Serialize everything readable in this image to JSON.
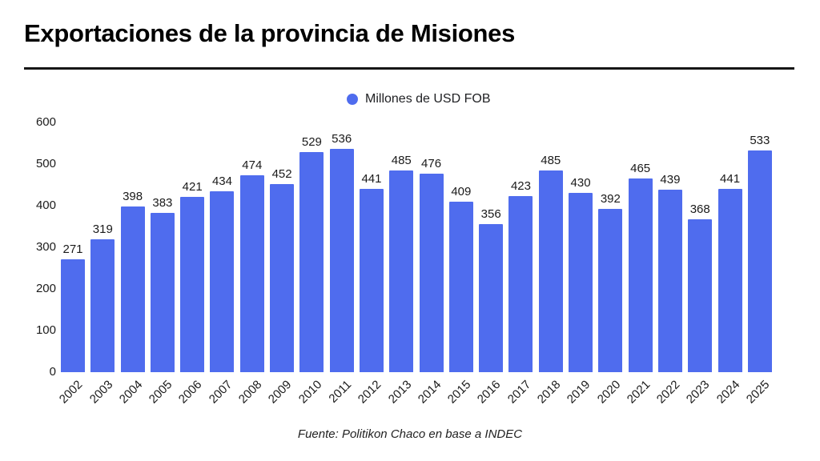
{
  "page": {
    "title": "Exportaciones de la provincia de Misiones",
    "source_note": "Fuente: Politikon Chaco en base a INDEC"
  },
  "legend": {
    "label": "Millones de USD FOB"
  },
  "colors": {
    "bar": "#4f6cee",
    "title": "#000000",
    "label": "#1a1a1a",
    "rule": "#161616"
  },
  "chart_data": {
    "type": "bar",
    "title": "Exportaciones de la provincia de Misiones",
    "legend_entries": [
      "Millones de USD FOB"
    ],
    "legend_position": "top-center",
    "categories": [
      "2002",
      "2003",
      "2004",
      "2005",
      "2006",
      "2007",
      "2008",
      "2009",
      "2010",
      "2011",
      "2012",
      "2013",
      "2014",
      "2015",
      "2016",
      "2017",
      "2018",
      "2019",
      "2020",
      "2021",
      "2022",
      "2023",
      "2024",
      "2025"
    ],
    "values": [
      271,
      319,
      398,
      383,
      421,
      434,
      474,
      452,
      529,
      536,
      441,
      485,
      476,
      409,
      356,
      423,
      485,
      430,
      392,
      465,
      439,
      368,
      441,
      533
    ],
    "xlabel": "",
    "ylabel": "",
    "ylim": [
      0,
      600
    ],
    "yticks": [
      0,
      100,
      200,
      300,
      400,
      500,
      600
    ],
    "grid": false,
    "data_labels": true,
    "x_tick_rotation_deg": -45,
    "source": "Fuente: Politikon Chaco en base a INDEC"
  }
}
